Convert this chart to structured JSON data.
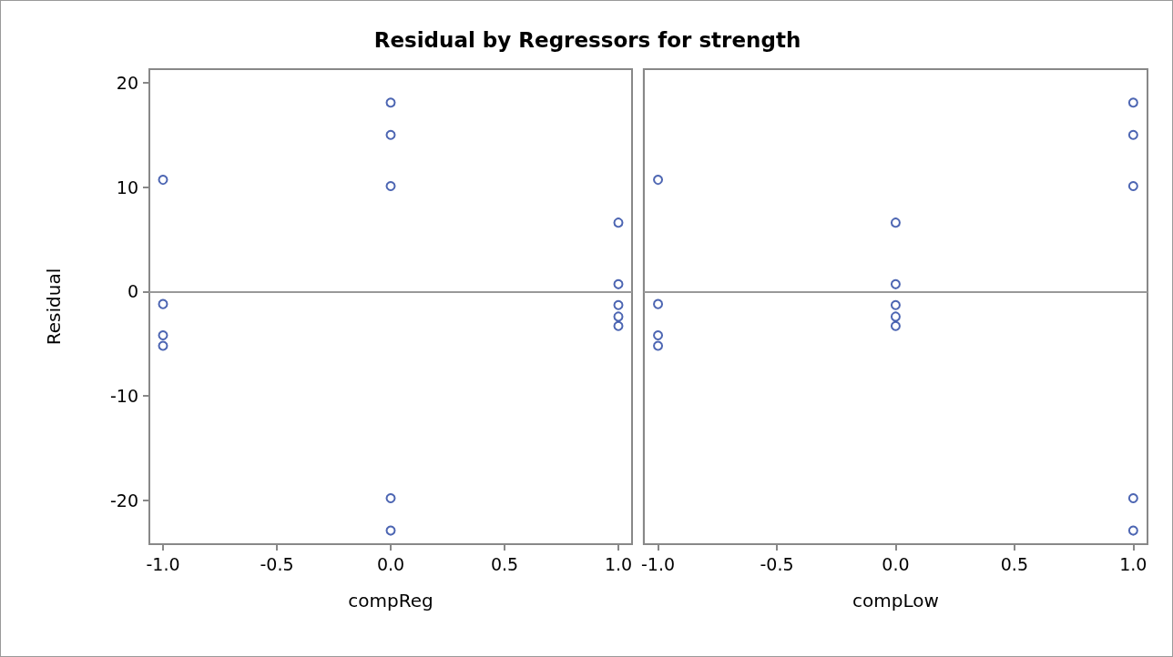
{
  "chart_data": [
    {
      "type": "scatter",
      "title": "Residual by Regressors for strength",
      "xlabel": "compReg",
      "ylabel": "Residual",
      "marker": "circle",
      "grid": false,
      "xlim": [
        -1.06,
        1.06
      ],
      "xticks": [
        {
          "value": -1,
          "label": "-1.0"
        },
        {
          "value": -0.5,
          "label": "-0.5"
        },
        {
          "value": 0,
          "label": "0.0"
        },
        {
          "value": 0.5,
          "label": "0.5"
        },
        {
          "value": 1,
          "label": "1.0"
        }
      ],
      "ylim": [
        -24.2,
        21.3
      ],
      "yticks": [
        -20,
        -10,
        0,
        10,
        20
      ],
      "ref_lines": [
        {
          "axis": "y",
          "value": 0,
          "color": "#999999"
        }
      ],
      "series": [
        {
          "color": "#1f3f9f",
          "x": [
            -1,
            -1,
            -1,
            -1,
            0,
            0,
            0,
            0,
            0,
            1,
            1,
            1,
            1,
            1
          ],
          "values": [
            10.7,
            -1.2,
            -4.2,
            -5.2,
            18.1,
            15.0,
            10.1,
            -19.8,
            -22.9,
            6.6,
            0.7,
            -1.3,
            -2.4,
            -3.3
          ]
        }
      ]
    },
    {
      "type": "scatter",
      "xlabel": "compLow",
      "marker": "circle",
      "grid": false,
      "tick_labels": "x",
      "xlim": [
        -1.06,
        1.06
      ],
      "xticks": [
        {
          "value": -1,
          "label": "-1.0"
        },
        {
          "value": -0.5,
          "label": "-0.5"
        },
        {
          "value": 0,
          "label": "0.0"
        },
        {
          "value": 0.5,
          "label": "0.5"
        },
        {
          "value": 1,
          "label": "1.0"
        }
      ],
      "ylim": [
        -24.2,
        21.3
      ],
      "yticks": [
        -20,
        -10,
        0,
        10,
        20
      ],
      "ref_lines": [
        {
          "axis": "y",
          "value": 0,
          "color": "#999999"
        }
      ],
      "series": [
        {
          "color": "#1f3f9f",
          "x": [
            -1,
            -1,
            -1,
            -1,
            0,
            0,
            0,
            0,
            0,
            1,
            1,
            1,
            1,
            1
          ],
          "values": [
            10.7,
            -1.2,
            -4.2,
            -5.2,
            6.6,
            0.7,
            -1.3,
            -2.4,
            -3.3,
            18.1,
            15.0,
            10.1,
            -19.8,
            -22.9
          ]
        }
      ]
    }
  ]
}
